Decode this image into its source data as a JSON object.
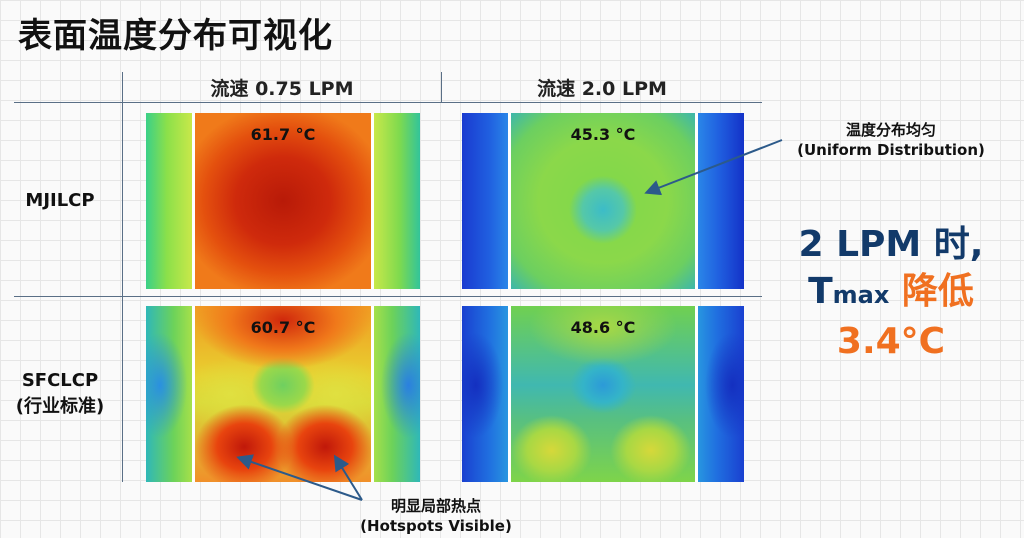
{
  "title": "表面温度分布可视化",
  "columns": [
    "流速 0.75 LPM",
    "流速 2.0 LPM"
  ],
  "rows": [
    {
      "label": "MJILCP",
      "sublabel": ""
    },
    {
      "label": "SFCLCP",
      "sublabel": "(行业标准)"
    }
  ],
  "panels": {
    "mjilcp_075": {
      "temp": "61.7 °C"
    },
    "mjilcp_20": {
      "temp": "45.3 °C"
    },
    "sfclcp_075": {
      "temp": "60.7 °C"
    },
    "sfclcp_20": {
      "temp": "48.6 °C"
    }
  },
  "annotations": {
    "uniform": {
      "cn": "温度分布均匀",
      "en": "(Uniform Distribution)"
    },
    "hotspots": {
      "cn": "明显局部热点",
      "en": "(Hotspots Visible)"
    }
  },
  "claim": {
    "line1": "2 LPM 时,",
    "t": "T",
    "sub": "max",
    "drop": " 降低",
    "value": "3.4°C"
  },
  "colors": {
    "hot": "#c81e0a",
    "warm": "#f5c830",
    "mid": "#7ed84a",
    "cool": "#20b5b0",
    "cold": "#1432c8",
    "accent_blue": "#123a6a",
    "accent_orange": "#f07020"
  }
}
